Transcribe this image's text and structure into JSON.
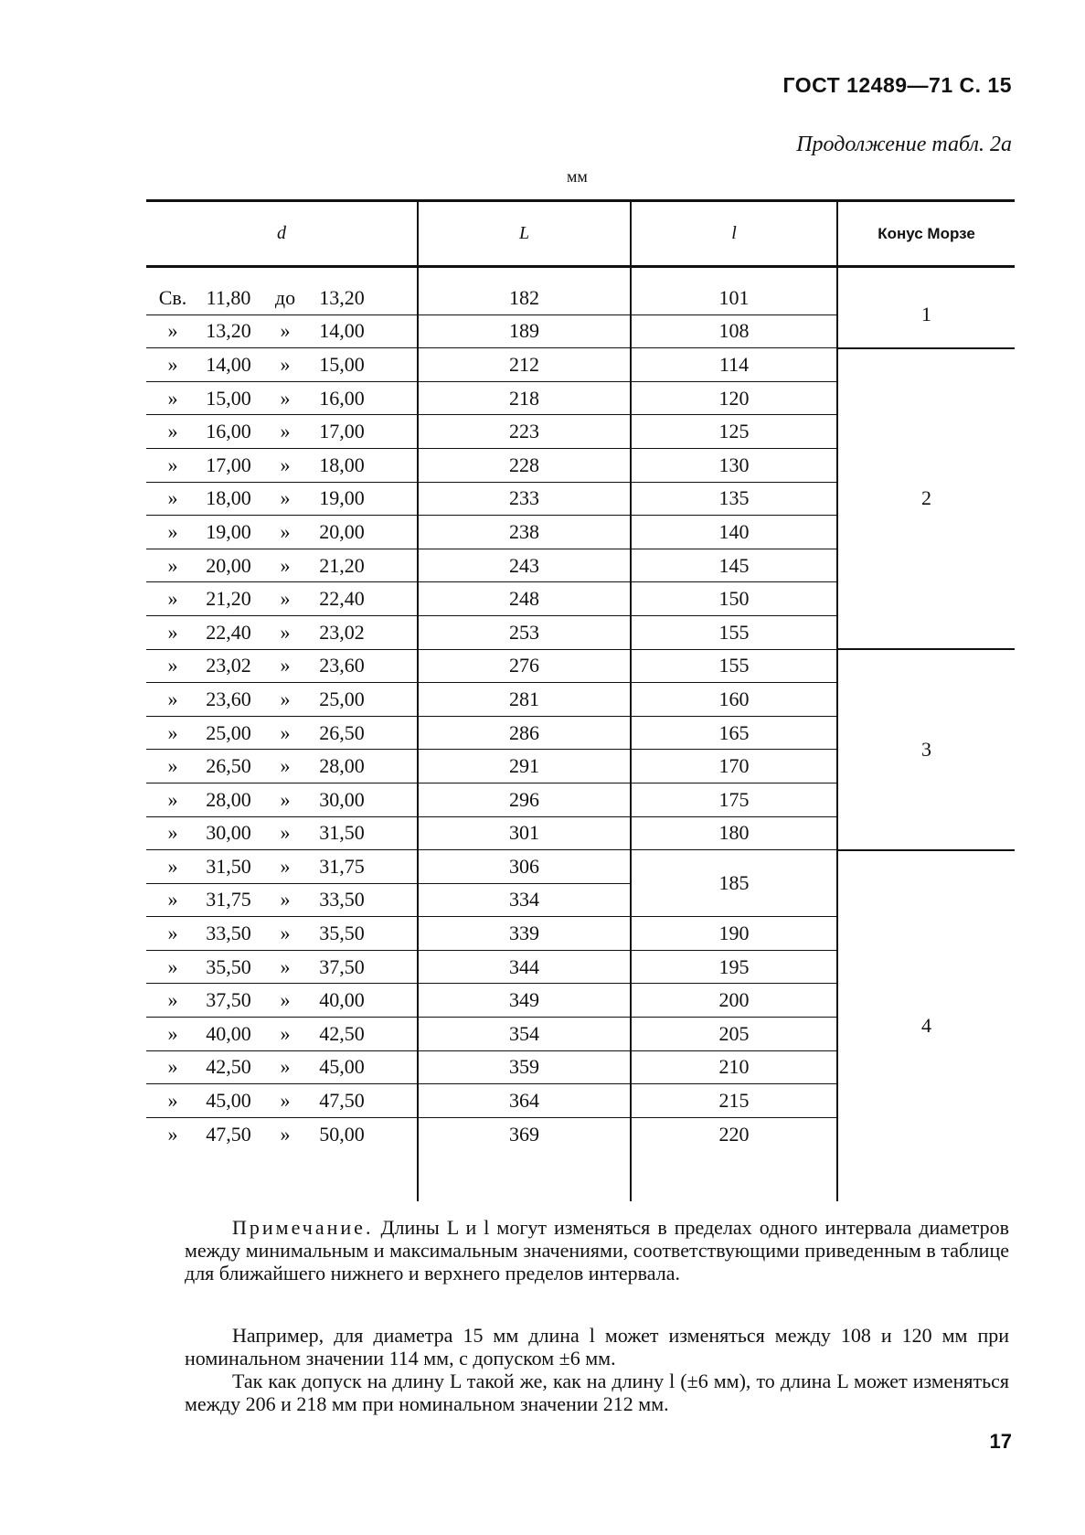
{
  "header": {
    "doc_ref": "ГОСТ 12489—71 С. 15",
    "continuation": "Продолжение табл. 2а",
    "unit": "мм"
  },
  "table": {
    "columns": [
      "d",
      "L",
      "l",
      "Конус Морзе"
    ],
    "first_prefix": "Св.",
    "first_mid": "до",
    "prefix": "»",
    "mid": "»",
    "rows": [
      {
        "from": "11,80",
        "to": "13,20",
        "L": "182",
        "l": "101"
      },
      {
        "from": "13,20",
        "to": "14,00",
        "L": "189",
        "l": "108"
      },
      {
        "from": "14,00",
        "to": "15,00",
        "L": "212",
        "l": "114"
      },
      {
        "from": "15,00",
        "to": "16,00",
        "L": "218",
        "l": "120"
      },
      {
        "from": "16,00",
        "to": "17,00",
        "L": "223",
        "l": "125"
      },
      {
        "from": "17,00",
        "to": "18,00",
        "L": "228",
        "l": "130"
      },
      {
        "from": "18,00",
        "to": "19,00",
        "L": "233",
        "l": "135"
      },
      {
        "from": "19,00",
        "to": "20,00",
        "L": "238",
        "l": "140"
      },
      {
        "from": "20,00",
        "to": "21,20",
        "L": "243",
        "l": "145"
      },
      {
        "from": "21,20",
        "to": "22,40",
        "L": "248",
        "l": "150"
      },
      {
        "from": "22,40",
        "to": "23,02",
        "L": "253",
        "l": "155"
      },
      {
        "from": "23,02",
        "to": "23,60",
        "L": "276",
        "l": "155"
      },
      {
        "from": "23,60",
        "to": "25,00",
        "L": "281",
        "l": "160"
      },
      {
        "from": "25,00",
        "to": "26,50",
        "L": "286",
        "l": "165"
      },
      {
        "from": "26,50",
        "to": "28,00",
        "L": "291",
        "l": "170"
      },
      {
        "from": "28,00",
        "to": "30,00",
        "L": "296",
        "l": "175"
      },
      {
        "from": "30,00",
        "to": "31,50",
        "L": "301",
        "l": "180"
      },
      {
        "from": "31,50",
        "to": "31,75",
        "L": "306",
        "l": "185"
      },
      {
        "from": "31,75",
        "to": "33,50",
        "L": "334",
        "l": ""
      },
      {
        "from": "33,50",
        "to": "35,50",
        "L": "339",
        "l": "190"
      },
      {
        "from": "35,50",
        "to": "37,50",
        "L": "344",
        "l": "195"
      },
      {
        "from": "37,50",
        "to": "40,00",
        "L": "349",
        "l": "200"
      },
      {
        "from": "40,00",
        "to": "42,50",
        "L": "354",
        "l": "205"
      },
      {
        "from": "42,50",
        "to": "45,00",
        "L": "359",
        "l": "210"
      },
      {
        "from": "45,00",
        "to": "47,50",
        "L": "364",
        "l": "215"
      },
      {
        "from": "47,50",
        "to": "50,00",
        "L": "369",
        "l": "220"
      }
    ],
    "morse": [
      {
        "value": "1",
        "rows": 2
      },
      {
        "value": "2",
        "rows": 9
      },
      {
        "value": "3",
        "rows": 6
      },
      {
        "value": "4",
        "rows": 9
      }
    ]
  },
  "note": {
    "label": "Примечание.",
    "p1": " Длины L и l могут изменяться в пределах одного интервала диаметров между минимальным и максимальным значениями, соответствующими приведенным в таблице для ближайшего нижнего и верхнего пределов интервала.",
    "p2": "Например, для диаметра 15 мм длина l может изменяться между 108 и 120 мм при номинальном значении 114 мм, с допуском ±6 мм.",
    "p3": "Так как допуск на длину L такой же, как на длину l (±6 мм), то длина L может изменяться между 206 и 218 мм при номинальном значении 212 мм."
  },
  "page_number": "17"
}
